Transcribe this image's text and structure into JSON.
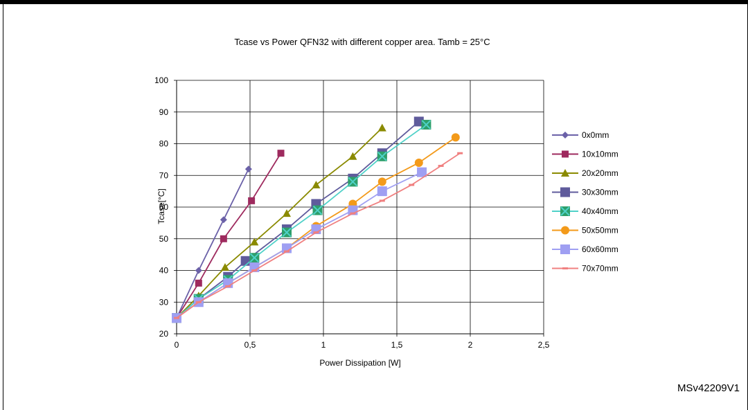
{
  "figure_id": "MSv42209V1",
  "chart_data": {
    "type": "line",
    "title": "Tcase vs Power  QFN32  with  different   copper  area.  Tamb  =  25°C",
    "xlabel": "Power Dissipation [W]",
    "ylabel": "Tcase[°C]",
    "xlim": [
      0,
      2.5
    ],
    "ylim": [
      20,
      100
    ],
    "x_ticks": [
      "0",
      "0,5",
      "1",
      "1,5",
      "2",
      "2,5"
    ],
    "y_ticks": [
      "20",
      "30",
      "40",
      "50",
      "60",
      "70",
      "80",
      "90",
      "100"
    ],
    "grid": "vertical and horizontal major gridlines",
    "legend_position": "right",
    "series": [
      {
        "name": "0x0mm",
        "color": "#6b61a8",
        "marker": "diamond",
        "x": [
          0,
          0.15,
          0.32,
          0.49
        ],
        "y": [
          25,
          40,
          56,
          72
        ]
      },
      {
        "name": "10x10mm",
        "color": "#9e2a5e",
        "marker": "square",
        "x": [
          0,
          0.15,
          0.32,
          0.51,
          0.71
        ],
        "y": [
          25,
          36,
          50,
          62,
          77
        ]
      },
      {
        "name": "20x20mm",
        "color": "#8a8a00",
        "marker": "triangle",
        "x": [
          0,
          0.15,
          0.33,
          0.53,
          0.75,
          0.95,
          1.2,
          1.4
        ],
        "y": [
          25,
          32,
          41,
          49,
          58,
          67,
          76,
          85
        ]
      },
      {
        "name": "30x30mm",
        "color": "#5f5b9c",
        "marker": "bigsquare",
        "x": [
          0,
          0.15,
          0.35,
          0.47,
          0.75,
          0.95,
          1.2,
          1.4,
          1.65
        ],
        "y": [
          25,
          31,
          38,
          43,
          53,
          61,
          69,
          77,
          87
        ]
      },
      {
        "name": "40x40mm",
        "color": "#4fd1c8",
        "marker": "xsquare",
        "x": [
          0,
          0.15,
          0.35,
          0.53,
          0.75,
          0.96,
          1.2,
          1.4,
          1.7
        ],
        "y": [
          25,
          31,
          37,
          44,
          52,
          59,
          68,
          76,
          86
        ]
      },
      {
        "name": "50x50mm",
        "color": "#f39a1a",
        "marker": "circle",
        "x": [
          0,
          0.15,
          0.35,
          0.53,
          0.75,
          0.95,
          1.2,
          1.4,
          1.65,
          1.9
        ],
        "y": [
          25,
          30,
          36,
          41,
          47,
          54,
          61,
          68,
          74,
          82
        ]
      },
      {
        "name": "60x60mm",
        "color": "#9f9ff2",
        "marker": "bigsquare",
        "x": [
          0,
          0.15,
          0.35,
          0.53,
          0.75,
          0.95,
          1.2,
          1.4,
          1.67
        ],
        "y": [
          25,
          30,
          36,
          41,
          47,
          53,
          59,
          65,
          71
        ]
      },
      {
        "name": "70x70mm",
        "color": "#f08080",
        "marker": "dash",
        "x": [
          0,
          0.15,
          0.35,
          0.53,
          0.75,
          0.95,
          1.2,
          1.4,
          1.6,
          1.8,
          1.93
        ],
        "y": [
          25,
          30,
          35,
          40,
          46,
          52,
          58,
          62,
          67,
          73,
          77
        ]
      }
    ]
  }
}
